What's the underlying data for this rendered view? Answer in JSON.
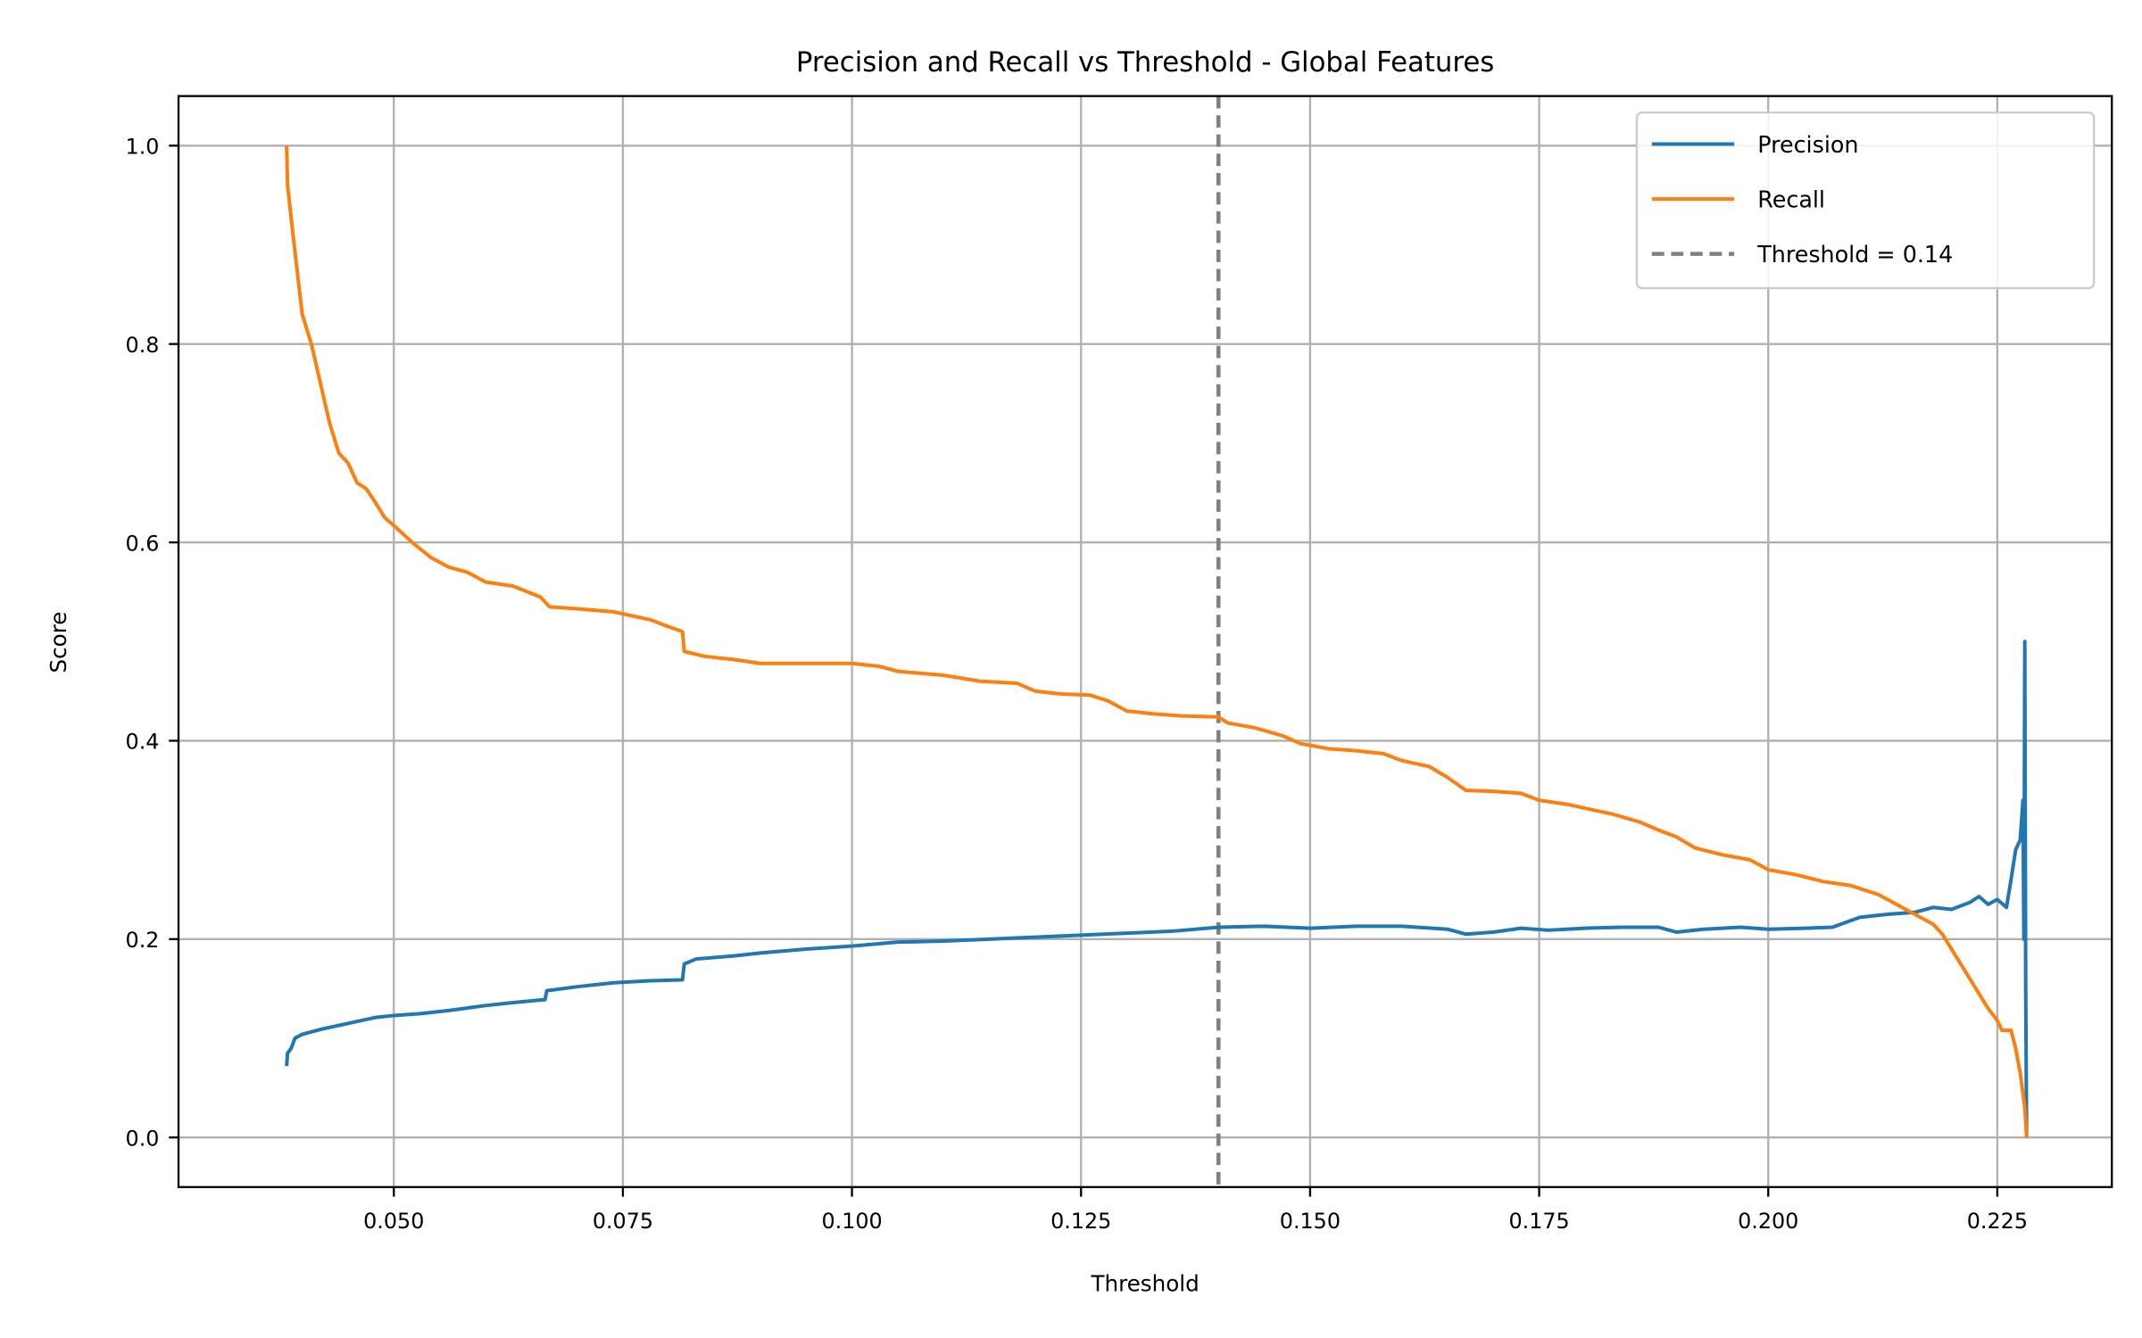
{
  "chart_data": {
    "type": "line",
    "title": "Precision and Recall vs Threshold - Global Features",
    "xlabel": "Threshold",
    "ylabel": "Score",
    "xlim": [
      0.0265,
      0.2375
    ],
    "ylim": [
      -0.05,
      1.05
    ],
    "x_ticks": [
      "0.050",
      "0.075",
      "0.100",
      "0.125",
      "0.150",
      "0.175",
      "0.200",
      "0.225"
    ],
    "x_tick_values": [
      0.05,
      0.075,
      0.1,
      0.125,
      0.15,
      0.175,
      0.2,
      0.225
    ],
    "y_ticks": [
      "0.0",
      "0.2",
      "0.4",
      "0.6",
      "0.8",
      "1.0"
    ],
    "y_tick_values": [
      0.0,
      0.2,
      0.4,
      0.6,
      0.8,
      1.0
    ],
    "grid": true,
    "legend_position": "upper right",
    "series": [
      {
        "name": "Precision",
        "color": "#1f77b4",
        "points": [
          [
            0.0383,
            0.072
          ],
          [
            0.0384,
            0.085
          ],
          [
            0.0388,
            0.09
          ],
          [
            0.0392,
            0.1
          ],
          [
            0.04,
            0.104
          ],
          [
            0.042,
            0.109
          ],
          [
            0.044,
            0.113
          ],
          [
            0.046,
            0.117
          ],
          [
            0.048,
            0.121
          ],
          [
            0.05,
            0.123
          ],
          [
            0.053,
            0.125
          ],
          [
            0.056,
            0.128
          ],
          [
            0.06,
            0.133
          ],
          [
            0.063,
            0.136
          ],
          [
            0.0665,
            0.139
          ],
          [
            0.0667,
            0.148
          ],
          [
            0.07,
            0.152
          ],
          [
            0.074,
            0.156
          ],
          [
            0.078,
            0.158
          ],
          [
            0.0815,
            0.159
          ],
          [
            0.0817,
            0.175
          ],
          [
            0.083,
            0.18
          ],
          [
            0.087,
            0.183
          ],
          [
            0.09,
            0.186
          ],
          [
            0.095,
            0.19
          ],
          [
            0.1,
            0.193
          ],
          [
            0.105,
            0.197
          ],
          [
            0.11,
            0.198
          ],
          [
            0.115,
            0.2
          ],
          [
            0.12,
            0.202
          ],
          [
            0.125,
            0.204
          ],
          [
            0.13,
            0.206
          ],
          [
            0.135,
            0.208
          ],
          [
            0.14,
            0.212
          ],
          [
            0.145,
            0.213
          ],
          [
            0.15,
            0.211
          ],
          [
            0.155,
            0.213
          ],
          [
            0.16,
            0.213
          ],
          [
            0.165,
            0.21
          ],
          [
            0.167,
            0.205
          ],
          [
            0.17,
            0.207
          ],
          [
            0.173,
            0.211
          ],
          [
            0.176,
            0.209
          ],
          [
            0.18,
            0.211
          ],
          [
            0.184,
            0.212
          ],
          [
            0.188,
            0.212
          ],
          [
            0.19,
            0.207
          ],
          [
            0.193,
            0.21
          ],
          [
            0.197,
            0.212
          ],
          [
            0.2,
            0.21
          ],
          [
            0.204,
            0.211
          ],
          [
            0.207,
            0.212
          ],
          [
            0.21,
            0.222
          ],
          [
            0.213,
            0.225
          ],
          [
            0.216,
            0.227
          ],
          [
            0.218,
            0.232
          ],
          [
            0.22,
            0.23
          ],
          [
            0.222,
            0.237
          ],
          [
            0.223,
            0.243
          ],
          [
            0.224,
            0.235
          ],
          [
            0.225,
            0.24
          ],
          [
            0.226,
            0.232
          ],
          [
            0.2265,
            0.26
          ],
          [
            0.227,
            0.29
          ],
          [
            0.2275,
            0.3
          ],
          [
            0.2278,
            0.34
          ],
          [
            0.2279,
            0.2
          ],
          [
            0.228,
            0.5
          ],
          [
            0.2281,
            0.15
          ],
          [
            0.2282,
            0.0
          ]
        ]
      },
      {
        "name": "Recall",
        "color": "#ff7f0e",
        "points": [
          [
            0.0383,
            1.0
          ],
          [
            0.0384,
            0.96
          ],
          [
            0.039,
            0.91
          ],
          [
            0.04,
            0.83
          ],
          [
            0.041,
            0.8
          ],
          [
            0.042,
            0.76
          ],
          [
            0.043,
            0.72
          ],
          [
            0.044,
            0.69
          ],
          [
            0.045,
            0.68
          ],
          [
            0.046,
            0.66
          ],
          [
            0.047,
            0.654
          ],
          [
            0.048,
            0.64
          ],
          [
            0.049,
            0.625
          ],
          [
            0.05,
            0.617
          ],
          [
            0.052,
            0.6
          ],
          [
            0.054,
            0.585
          ],
          [
            0.056,
            0.575
          ],
          [
            0.058,
            0.57
          ],
          [
            0.06,
            0.56
          ],
          [
            0.063,
            0.556
          ],
          [
            0.066,
            0.545
          ],
          [
            0.067,
            0.535
          ],
          [
            0.07,
            0.533
          ],
          [
            0.074,
            0.53
          ],
          [
            0.078,
            0.522
          ],
          [
            0.08,
            0.515
          ],
          [
            0.0815,
            0.51
          ],
          [
            0.0817,
            0.49
          ],
          [
            0.084,
            0.485
          ],
          [
            0.087,
            0.482
          ],
          [
            0.09,
            0.478
          ],
          [
            0.095,
            0.478
          ],
          [
            0.1,
            0.478
          ],
          [
            0.103,
            0.475
          ],
          [
            0.105,
            0.47
          ],
          [
            0.11,
            0.466
          ],
          [
            0.114,
            0.46
          ],
          [
            0.118,
            0.458
          ],
          [
            0.12,
            0.45
          ],
          [
            0.123,
            0.447
          ],
          [
            0.126,
            0.446
          ],
          [
            0.128,
            0.44
          ],
          [
            0.13,
            0.43
          ],
          [
            0.133,
            0.427
          ],
          [
            0.136,
            0.425
          ],
          [
            0.14,
            0.424
          ],
          [
            0.141,
            0.418
          ],
          [
            0.144,
            0.413
          ],
          [
            0.147,
            0.405
          ],
          [
            0.149,
            0.397
          ],
          [
            0.152,
            0.392
          ],
          [
            0.155,
            0.39
          ],
          [
            0.158,
            0.387
          ],
          [
            0.16,
            0.38
          ],
          [
            0.163,
            0.374
          ],
          [
            0.165,
            0.363
          ],
          [
            0.167,
            0.35
          ],
          [
            0.17,
            0.349
          ],
          [
            0.173,
            0.347
          ],
          [
            0.175,
            0.34
          ],
          [
            0.178,
            0.336
          ],
          [
            0.18,
            0.332
          ],
          [
            0.183,
            0.326
          ],
          [
            0.186,
            0.318
          ],
          [
            0.188,
            0.31
          ],
          [
            0.19,
            0.303
          ],
          [
            0.192,
            0.292
          ],
          [
            0.195,
            0.285
          ],
          [
            0.198,
            0.28
          ],
          [
            0.2,
            0.27
          ],
          [
            0.203,
            0.265
          ],
          [
            0.206,
            0.258
          ],
          [
            0.209,
            0.254
          ],
          [
            0.212,
            0.245
          ],
          [
            0.214,
            0.235
          ],
          [
            0.216,
            0.225
          ],
          [
            0.218,
            0.215
          ],
          [
            0.219,
            0.205
          ],
          [
            0.22,
            0.19
          ],
          [
            0.221,
            0.175
          ],
          [
            0.222,
            0.16
          ],
          [
            0.223,
            0.145
          ],
          [
            0.224,
            0.13
          ],
          [
            0.225,
            0.118
          ],
          [
            0.2255,
            0.108
          ],
          [
            0.2265,
            0.108
          ],
          [
            0.227,
            0.09
          ],
          [
            0.2275,
            0.065
          ],
          [
            0.228,
            0.03
          ],
          [
            0.2282,
            0.0
          ]
        ]
      },
      {
        "name": "Threshold = 0.14",
        "color": "#808080",
        "style": "dashed",
        "vline_x": 0.14
      }
    ]
  }
}
